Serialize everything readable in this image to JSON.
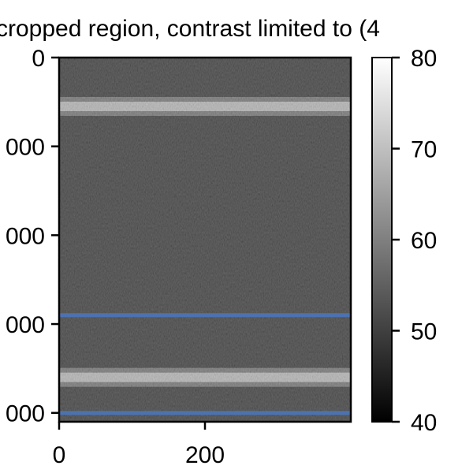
{
  "chart_data": {
    "type": "heatmap",
    "title": "cropped region, contrast limited to (4",
    "xlabel": "",
    "ylabel": "",
    "colormap": "gray",
    "xlim": [
      0,
      400
    ],
    "ylim": [
      4100,
      0
    ],
    "x_ticks": [
      0,
      200
    ],
    "x_tick_labels": [
      "0",
      "200"
    ],
    "y_ticks": [
      0,
      1000,
      2000,
      3000,
      4000
    ],
    "y_tick_labels": [
      "0",
      "000",
      "000",
      "000",
      "000"
    ],
    "colorbar": {
      "range": [
        40,
        80
      ],
      "ticks": [
        40,
        50,
        60,
        70,
        80
      ],
      "tick_labels": [
        "40",
        "50",
        "60",
        "70",
        "80"
      ]
    },
    "bright_bands_depth": [
      550,
      3600
    ],
    "hlines": [
      {
        "y": 2900,
        "color": "#4c72b0"
      },
      {
        "y": 4000,
        "color": "#4c72b0"
      }
    ],
    "grid": false
  }
}
